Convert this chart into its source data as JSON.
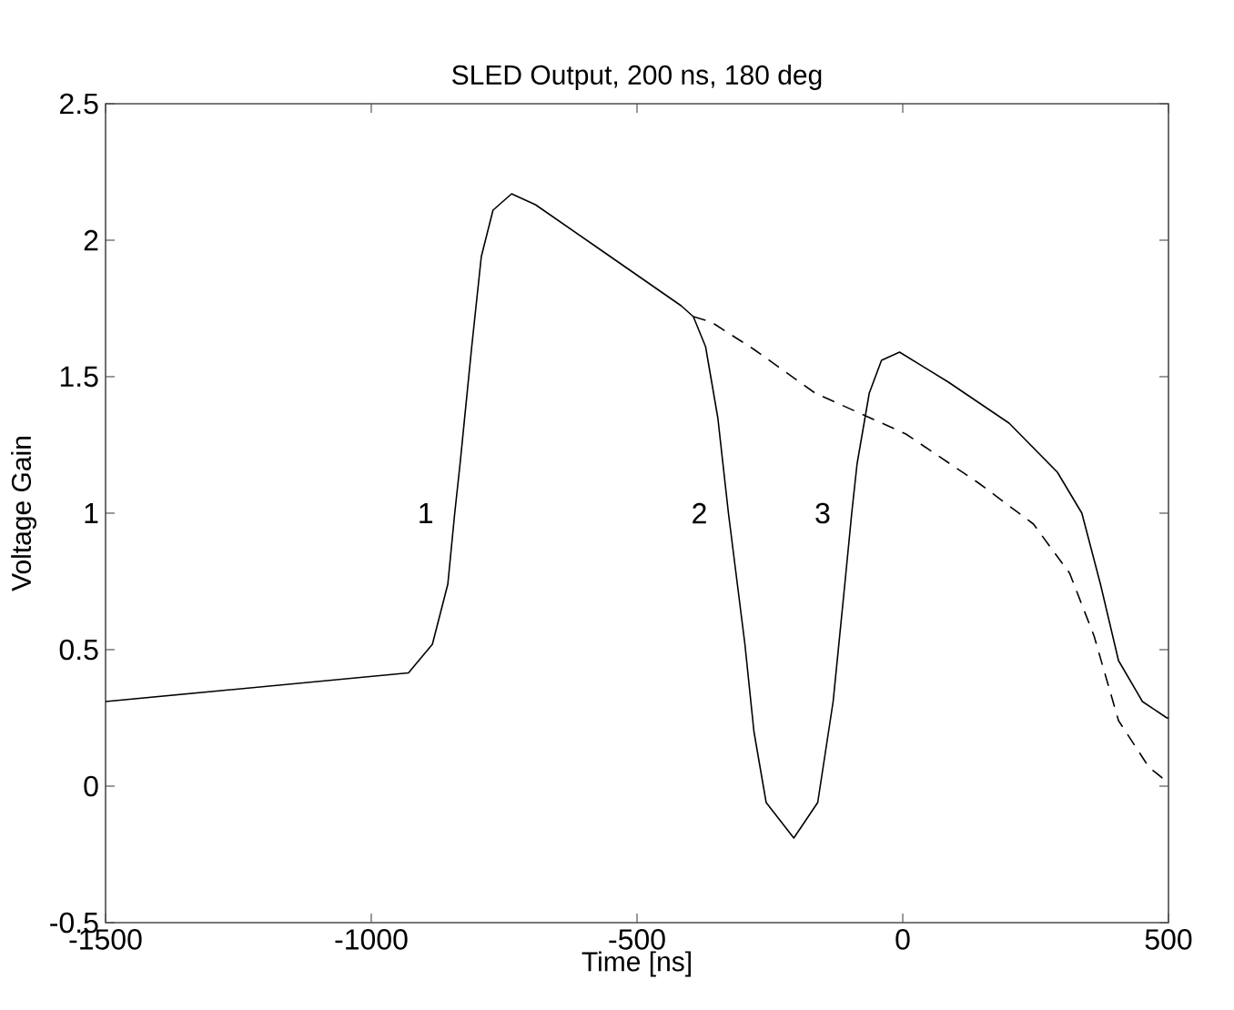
{
  "chart_data": {
    "type": "line",
    "title": "SLED Output, 200 ns, 180 deg",
    "xlabel": "Time [ns]",
    "ylabel": "Voltage Gain",
    "xlim": [
      -1500,
      500
    ],
    "ylim": [
      -0.5,
      2.5
    ],
    "xticks": [
      -1500,
      -1000,
      -500,
      0,
      500
    ],
    "yticks": [
      -0.5,
      0,
      0.5,
      1,
      1.5,
      2,
      2.5
    ],
    "grid": false,
    "marker": "none",
    "series": [
      {
        "color": "#000000",
        "line_style": "solid",
        "x": [
          -1500,
          -930,
          -885,
          -856,
          -843,
          -833,
          -811,
          -793,
          -771,
          -736,
          -691,
          -565,
          -417,
          -394,
          -371,
          -348,
          -328,
          -297,
          -280,
          -257,
          -205,
          -160,
          -131,
          -109,
          -96,
          -86,
          -63,
          -40,
          -6,
          86,
          200,
          291,
          337,
          372,
          406,
          451,
          497,
          500
        ],
        "values": [
          0.31,
          0.415,
          0.52,
          0.74,
          1.0,
          1.18,
          1.61,
          1.94,
          2.11,
          2.17,
          2.13,
          1.96,
          1.76,
          1.72,
          1.61,
          1.35,
          1.0,
          0.52,
          0.2,
          -0.06,
          -0.19,
          -0.06,
          0.31,
          0.74,
          1.0,
          1.18,
          1.44,
          1.56,
          1.59,
          1.48,
          1.33,
          1.15,
          1.0,
          0.74,
          0.46,
          0.31,
          0.25,
          0.25
        ]
      },
      {
        "color": "#000000",
        "line_style": "dashed",
        "x": [
          -394,
          -360,
          -280,
          -165,
          6,
          143,
          246,
          314,
          360,
          406,
          463,
          495
        ],
        "values": [
          1.72,
          1.7,
          1.6,
          1.44,
          1.29,
          1.11,
          0.96,
          0.78,
          0.55,
          0.24,
          0.07,
          0.02
        ]
      }
    ],
    "annotations": [
      {
        "text": "1",
        "x": -843,
        "y": 1.0
      },
      {
        "text": "2",
        "x": -328,
        "y": 1.0
      },
      {
        "text": "3",
        "x": -96,
        "y": 1.0
      }
    ]
  }
}
